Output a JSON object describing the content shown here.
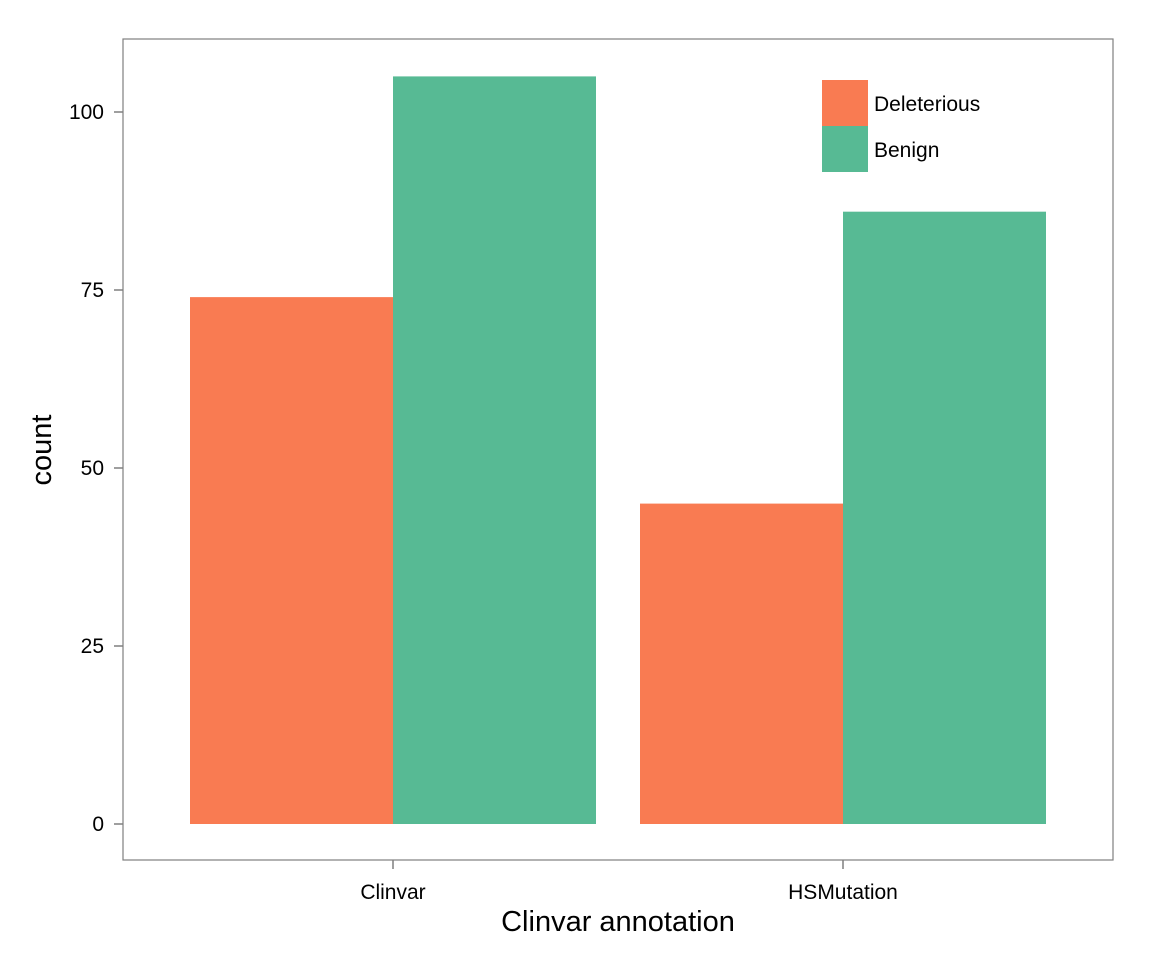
{
  "chart_data": {
    "type": "bar",
    "barmode": "dodge",
    "title": "",
    "xlabel": "Clinvar annotation",
    "ylabel": "count",
    "categories": [
      "Clinvar",
      "HSMutation"
    ],
    "series": [
      {
        "name": "Deleterious",
        "color": "#F97B52",
        "values": [
          74,
          45
        ]
      },
      {
        "name": "Benign",
        "color": "#57BA94",
        "values": [
          105,
          86
        ]
      }
    ],
    "ylim": [
      0,
      110
    ],
    "yticks": [
      0,
      25,
      50,
      75,
      100
    ],
    "grid": false,
    "legend_position": "top-right"
  }
}
